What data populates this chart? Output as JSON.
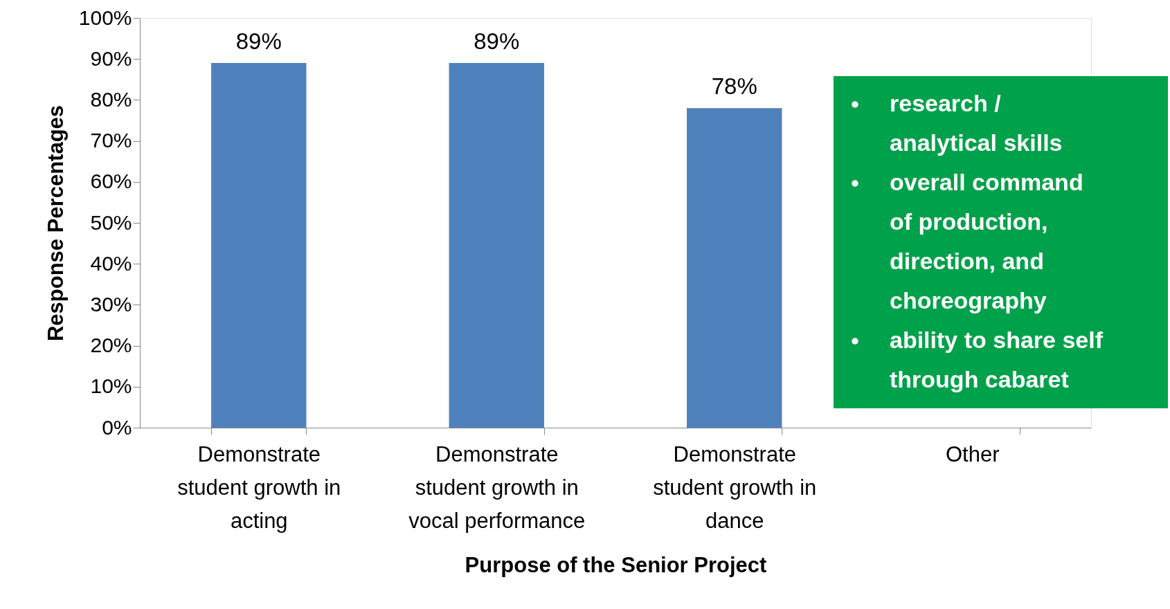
{
  "chart_data": {
    "type": "bar",
    "xlabel": "Purpose of the Senior Project",
    "ylabel": "Response Percentages",
    "categories": [
      "Demonstrate student growth in acting",
      "Demonstrate student growth in vocal performance",
      "Demonstrate student growth in dance",
      "Other"
    ],
    "values": [
      89,
      89,
      78,
      null
    ],
    "value_labels": [
      "89%",
      "89%",
      "78%",
      null
    ],
    "color": "#4f81bd",
    "ylim": [
      0,
      100
    ],
    "yticks": [
      {
        "value": 0,
        "label": "0%"
      },
      {
        "value": 10,
        "label": "10%"
      },
      {
        "value": 20,
        "label": "20%"
      },
      {
        "value": 30,
        "label": "30%"
      },
      {
        "value": 40,
        "label": "40%"
      },
      {
        "value": 50,
        "label": "50%"
      },
      {
        "value": 60,
        "label": "60%"
      },
      {
        "value": 70,
        "label": "70%"
      },
      {
        "value": 80,
        "label": "80%"
      },
      {
        "value": 90,
        "label": "90%"
      },
      {
        "value": 100,
        "label": "100%"
      }
    ],
    "annotations": [
      "research / analytical skills",
      "overall command of production, direction, and choreography",
      "ability to share self through cabaret"
    ],
    "grid": false
  }
}
